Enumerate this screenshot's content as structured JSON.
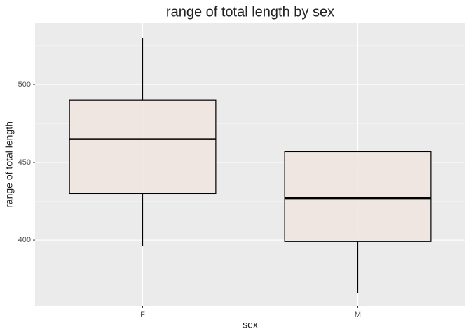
{
  "chart_data": {
    "type": "boxplot",
    "title": "range of total length by sex",
    "x_label": "sex",
    "y_label": "range of total length",
    "categories": [
      "F",
      "M"
    ],
    "boxes": [
      {
        "min": 396,
        "q1": 430,
        "median": 465,
        "q3": 490,
        "max": 530
      },
      {
        "min": 366,
        "q1": 399,
        "median": 427,
        "q3": 457,
        "max": 457
      }
    ],
    "color": "#f0e6e0",
    "ylim": [
      357.7,
      539.6
    ],
    "yticks": [
      400,
      450,
      500
    ],
    "minor_yticks": [
      375,
      425,
      475,
      525
    ],
    "grid": true
  }
}
